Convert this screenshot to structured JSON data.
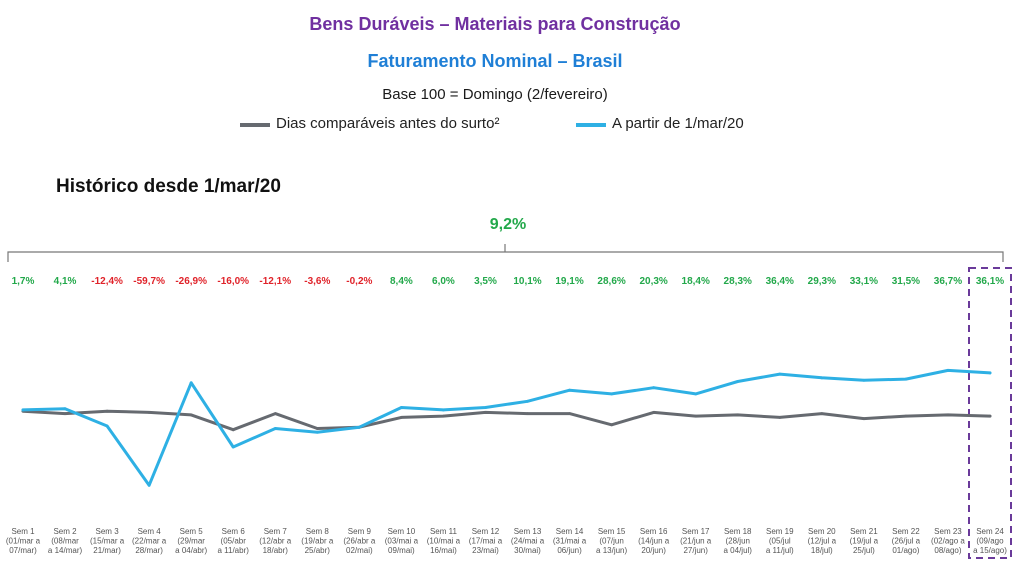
{
  "title": "Bens Duráveis – Materiais para Construção",
  "subtitle": "Faturamento Nominal – Brasil",
  "base_note": "Base 100 = Domingo (2/fevereiro)",
  "section_title": "Histórico desde 1/mar/20",
  "total_change": "9,2%",
  "colors": {
    "title": "#7030a0",
    "subtitle": "#1f7fd6",
    "positive": "#22a84a",
    "negative": "#e0232a",
    "series_before": "#666a70",
    "series_after": "#2eb0e4",
    "highlight": "#6a3a9a"
  },
  "chart_data": {
    "type": "line",
    "title": "Histórico desde 1/mar/20",
    "categories": [
      "Sem 1 (01/mar a 07/mar)",
      "Sem 2 (08/mar a 14/mar)",
      "Sem 3 (15/mar a 21/mar)",
      "Sem 4 (22/mar a 28/mar)",
      "Sem 5 (29/mar a 04/abr)",
      "Sem 6 (05/abr a 11/abr)",
      "Sem 7 (12/abr a 18/abr)",
      "Sem 8 (19/abr a 25/abr)",
      "Sem 9 (26/abr a 02/mai)",
      "Sem 10 (03/mai a 09/mai)",
      "Sem 11 (10/mai a 16/mai)",
      "Sem 12 (17/mai a 23/mai)",
      "Sem 13 (24/mai a 30/mai)",
      "Sem 14 (31/mai a 06/jun)",
      "Sem 15 (07/jun a 13/jun)",
      "Sem 16 (14/jun a 20/jun)",
      "Sem 17 (21/jun a 27/jun)",
      "Sem 18 (28/jun a 04/jul)",
      "Sem 19 (05/jul a 11/jul)",
      "Sem 20 (12/jul a 18/jul)",
      "Sem 21 (19/jul a 25/jul)",
      "Sem 22 (26/jul a 01/ago)",
      "Sem 23 (02/ago a 08/ago)",
      "Sem 24 (09/ago a 15/ago)"
    ],
    "tick_labels": [
      [
        "Sem 1",
        "(01/mar a",
        "07/mar)"
      ],
      [
        "Sem 2",
        "(08/mar",
        "a 14/mar)"
      ],
      [
        "Sem 3",
        "(15/mar a",
        "21/mar)"
      ],
      [
        "Sem 4",
        "(22/mar a",
        "28/mar)"
      ],
      [
        "Sem 5",
        "(29/mar",
        "a 04/abr)"
      ],
      [
        "Sem 6",
        "(05/abr",
        "a 11/abr)"
      ],
      [
        "Sem 7",
        "(12/abr a",
        "18/abr)"
      ],
      [
        "Sem 8",
        "(19/abr a",
        "25/abr)"
      ],
      [
        "Sem 9",
        "(26/abr a",
        "02/mai)"
      ],
      [
        "Sem 10",
        "(03/mai a",
        "09/mai)"
      ],
      [
        "Sem 11",
        "(10/mai a",
        "16/mai)"
      ],
      [
        "Sem 12",
        "(17/mai a",
        "23/mai)"
      ],
      [
        "Sem 13",
        "(24/mai a",
        "30/mai)"
      ],
      [
        "Sem 14",
        "(31/mai a",
        "06/jun)"
      ],
      [
        "Sem 15",
        "(07/jun",
        "a 13/jun)"
      ],
      [
        "Sem 16",
        "(14/jun a",
        "20/jun)"
      ],
      [
        "Sem 17",
        "(21/jun a",
        "27/jun)"
      ],
      [
        "Sem 18",
        "(28/jun",
        "a 04/jul)"
      ],
      [
        "Sem 19",
        "(05/jul",
        "a 11/jul)"
      ],
      [
        "Sem 20",
        "(12/jul a",
        "18/jul)"
      ],
      [
        "Sem 21",
        "(19/jul a",
        "25/jul)"
      ],
      [
        "Sem 22",
        "(26/jul a",
        "01/ago)"
      ],
      [
        "Sem 23",
        "(02/ago a",
        "08/ago)"
      ],
      [
        "Sem 24",
        "(09/ago",
        "a 15/ago)"
      ]
    ],
    "pct_labels": [
      "1,7%",
      "4,1%",
      "-12,4%",
      "-59,7%",
      "-26,9%",
      "-16,0%",
      "-12,1%",
      "-3,6%",
      "-0,2%",
      "8,4%",
      "6,0%",
      "3,5%",
      "10,1%",
      "19,1%",
      "28,6%",
      "20,3%",
      "18,4%",
      "28,3%",
      "36,4%",
      "29,3%",
      "33,1%",
      "31,5%",
      "36,7%",
      "36,1%"
    ],
    "pct_values": [
      1.7,
      4.1,
      -12.4,
      -59.7,
      -26.9,
      -16.0,
      -12.1,
      -3.6,
      -0.2,
      8.4,
      6.0,
      3.5,
      10.1,
      19.1,
      28.6,
      20.3,
      18.4,
      28.3,
      36.4,
      29.3,
      33.1,
      31.5,
      36.7,
      36.1
    ],
    "series": [
      {
        "name": "Dias comparáveis antes do surto²",
        "values": [
          100,
          98,
          100,
          99,
          97,
          85,
          98,
          86,
          87,
          95,
          96,
          99,
          98,
          98,
          89,
          99,
          96,
          97,
          95,
          98,
          94,
          96,
          97,
          96
        ]
      },
      {
        "name": "A partir de 1/mar/20",
        "values": [
          101,
          102,
          88,
          40,
          123,
          71,
          86,
          83,
          87,
          103,
          101,
          103,
          108,
          117,
          114,
          119,
          114,
          124,
          130,
          127,
          125,
          126,
          133,
          131
        ]
      }
    ],
    "ylim": [
      20,
      190
    ],
    "highlight_index": 23,
    "grid": false,
    "legend_position": "top-center"
  }
}
